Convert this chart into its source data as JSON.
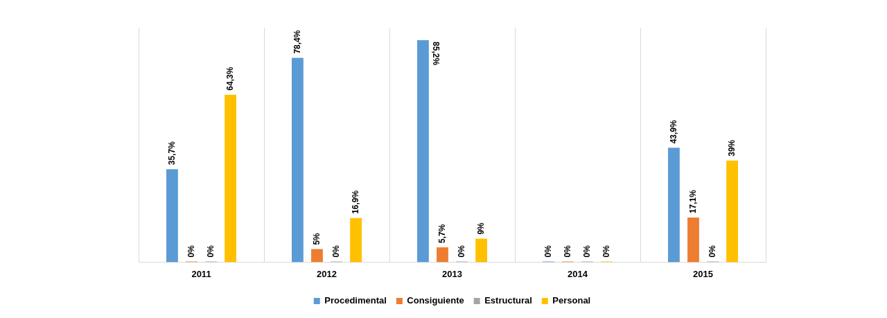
{
  "chart_data": {
    "type": "bar",
    "categories": [
      "2011",
      "2012",
      "2013",
      "2014",
      "2015"
    ],
    "series": [
      {
        "name": "Procedimental",
        "color": "#5b9bd5",
        "values": [
          35.7,
          78.4,
          85.2,
          0,
          43.9
        ],
        "value_labels": [
          "35,7%",
          "78,4%",
          "85,2%",
          "0%",
          "43,9%"
        ]
      },
      {
        "name": "Consiguiente",
        "color": "#ed7d31",
        "values": [
          0,
          5,
          5.7,
          0,
          17.1
        ],
        "value_labels": [
          "0%",
          "5%",
          "5,7%",
          "0%",
          "17,1%"
        ]
      },
      {
        "name": "Estructural",
        "color": "#a5a5a5",
        "values": [
          0,
          0,
          0,
          0,
          0
        ],
        "value_labels": [
          "0%",
          "0%",
          "0%",
          "0%",
          "0%"
        ]
      },
      {
        "name": "Personal",
        "color": "#ffc000",
        "values": [
          64.3,
          16.9,
          9,
          0,
          39
        ],
        "value_labels": [
          "64,3%",
          "16,9%",
          "9%",
          "0%",
          "39%"
        ]
      }
    ],
    "grid": "x",
    "legend": "bottom"
  }
}
